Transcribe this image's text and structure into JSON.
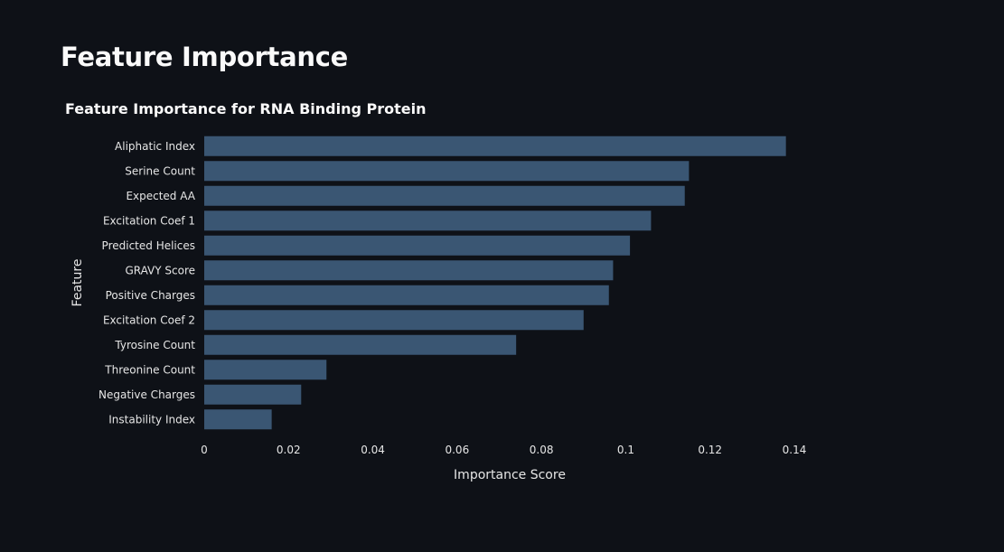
{
  "page": {
    "title": "Feature Importance"
  },
  "colors": {
    "background": "#0e1117",
    "bar": "#3a5673",
    "text": "#fafafa"
  },
  "chart_data": {
    "type": "bar",
    "orientation": "horizontal",
    "title": "Feature Importance for RNA Binding Protein",
    "xlabel": "Importance Score",
    "ylabel": "Feature",
    "xlim": [
      0,
      0.14
    ],
    "xticks": [
      0,
      0.02,
      0.04,
      0.06,
      0.08,
      0.1,
      0.12,
      0.14
    ],
    "xtick_labels": [
      "0",
      "0.02",
      "0.04",
      "0.06",
      "0.08",
      "0.1",
      "0.12",
      "0.14"
    ],
    "grid": false,
    "categories": [
      "Aliphatic Index",
      "Serine Count",
      "Expected AA",
      "Excitation Coef 1",
      "Predicted Helices",
      "GRAVY Score",
      "Positive Charges",
      "Excitation Coef 2",
      "Tyrosine Count",
      "Threonine Count",
      "Negative Charges",
      "Instability Index"
    ],
    "values": [
      0.138,
      0.115,
      0.114,
      0.106,
      0.101,
      0.097,
      0.096,
      0.09,
      0.074,
      0.029,
      0.023,
      0.016
    ]
  }
}
